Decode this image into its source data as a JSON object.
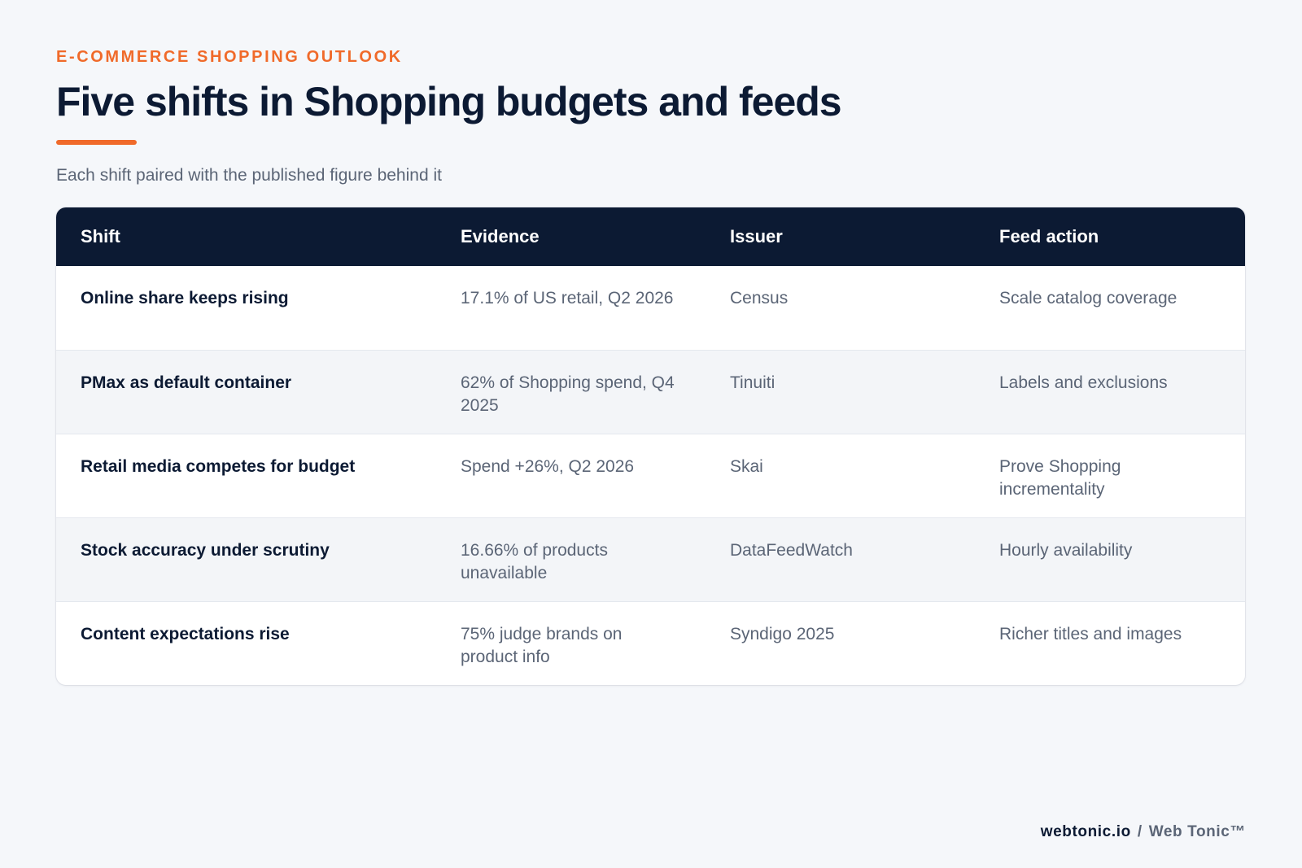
{
  "header": {
    "kicker": "E-COMMERCE SHOPPING OUTLOOK",
    "title": "Five shifts in Shopping budgets and feeds",
    "subtitle": "Each shift paired with the published figure behind it"
  },
  "colors": {
    "accent": "#f06a2a",
    "navy": "#0c1a33",
    "muted_text": "#5b6576",
    "page_background": "#f5f7fa"
  },
  "table": {
    "columns": [
      "Shift",
      "Evidence",
      "Issuer",
      "Feed action"
    ],
    "rows": [
      [
        "Online share keeps rising",
        "17.1% of US retail, Q2 2026",
        "Census",
        "Scale catalog coverage"
      ],
      [
        "PMax as default container",
        "62% of Shopping spend, Q4 2025",
        "Tinuiti",
        "Labels and exclusions"
      ],
      [
        "Retail media competes for budget",
        "Spend +26%, Q2 2026",
        "Skai",
        "Prove Shopping incrementality"
      ],
      [
        "Stock accuracy under scrutiny",
        "16.66% of products unavailable",
        "DataFeedWatch",
        "Hourly availability"
      ],
      [
        "Content expectations rise",
        "75% judge brands on product info",
        "Syndigo 2025",
        "Richer titles and images"
      ]
    ]
  },
  "footer": {
    "site": "webtonic.io",
    "separator": "/",
    "brand": "Web Tonic™"
  }
}
